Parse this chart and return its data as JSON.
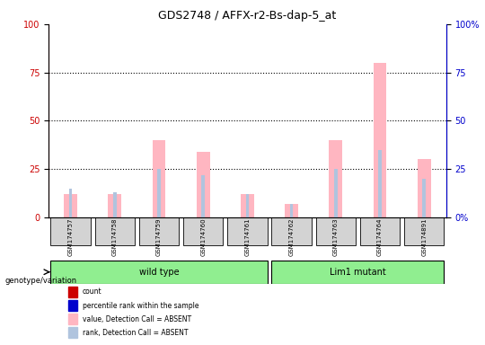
{
  "title": "GDS2748 / AFFX-r2-Bs-dap-5_at",
  "samples": [
    "GSM174757",
    "GSM174758",
    "GSM174759",
    "GSM174760",
    "GSM174761",
    "GSM174762",
    "GSM174763",
    "GSM174764",
    "GSM174891"
  ],
  "pink_bars": [
    12,
    12,
    40,
    34,
    12,
    7,
    40,
    80,
    30
  ],
  "blue_bars": [
    15,
    13,
    25,
    22,
    12,
    7,
    25,
    35,
    20
  ],
  "wild_type_indices": [
    0,
    1,
    2,
    3,
    4
  ],
  "lim1_mutant_indices": [
    5,
    6,
    7,
    8
  ],
  "ylim_max": 100,
  "yticks": [
    0,
    25,
    50,
    75,
    100
  ],
  "left_axis_color": "#cc0000",
  "right_axis_color": "#0000cc",
  "title_fontsize": 9,
  "legend_labels": [
    "count",
    "percentile rank within the sample",
    "value, Detection Call = ABSENT",
    "rank, Detection Call = ABSENT"
  ],
  "legend_colors": [
    "#cc0000",
    "#0000cc",
    "#ffb6c1",
    "#b0c4de"
  ],
  "group_labels": [
    "wild type",
    "Lim1 mutant"
  ],
  "group_color": "#90EE90"
}
